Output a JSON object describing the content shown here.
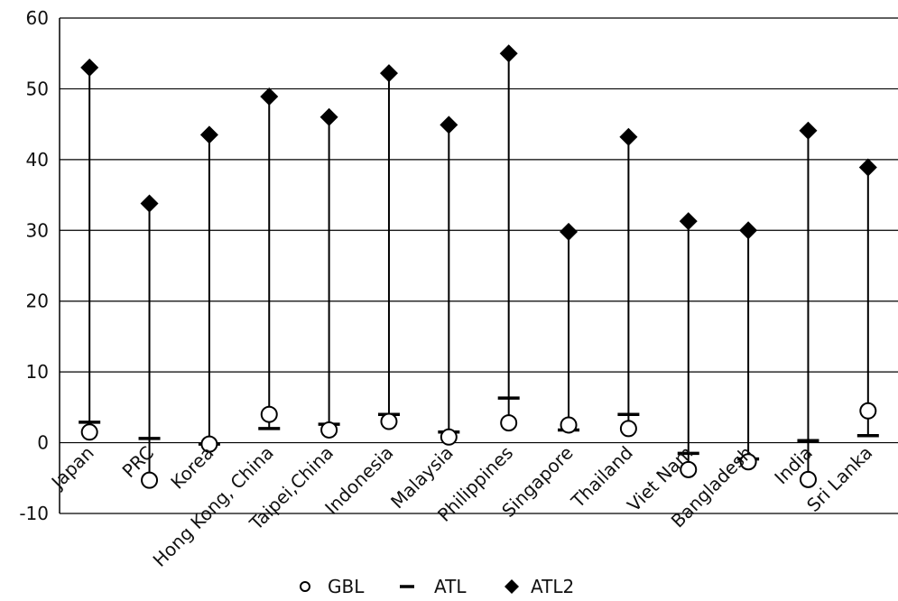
{
  "chart_data": {
    "type": "scatter",
    "title": "",
    "xlabel": "",
    "ylabel": "",
    "ylim": [
      -10,
      60
    ],
    "yticks": [
      -10,
      0,
      10,
      20,
      30,
      40,
      50,
      60
    ],
    "grid": "horizontal",
    "legend_position": "bottom",
    "categories": [
      "Japan",
      "PRC",
      "Korea",
      "Hong Kong, China",
      "Taipei,China",
      "Indonesia",
      "Malaysia",
      "Philippines",
      "Singapore",
      "Thailand",
      "Viet Nam",
      "Bangladesh",
      "India",
      "Sri Lanka"
    ],
    "series": [
      {
        "name": "GBL",
        "marker": "open-circle",
        "values": [
          1.5,
          -5.3,
          -0.2,
          4.0,
          1.8,
          3.0,
          0.8,
          2.8,
          2.5,
          2.0,
          -3.8,
          -2.7,
          -5.2,
          4.5
        ]
      },
      {
        "name": "ATL",
        "marker": "dash",
        "values": [
          2.9,
          0.6,
          -0.2,
          2.0,
          2.6,
          4.0,
          1.5,
          6.3,
          1.8,
          4.0,
          -1.5,
          -2.3,
          0.3,
          1.0
        ]
      },
      {
        "name": "ATL2",
        "marker": "filled-diamond",
        "values": [
          53.0,
          33.8,
          43.5,
          48.9,
          46.0,
          52.2,
          44.9,
          55.0,
          29.8,
          43.2,
          31.3,
          30.0,
          44.1,
          38.9
        ]
      }
    ],
    "colors": {
      "marker": "#000000",
      "ATL_last": "#1f3a5a"
    }
  }
}
